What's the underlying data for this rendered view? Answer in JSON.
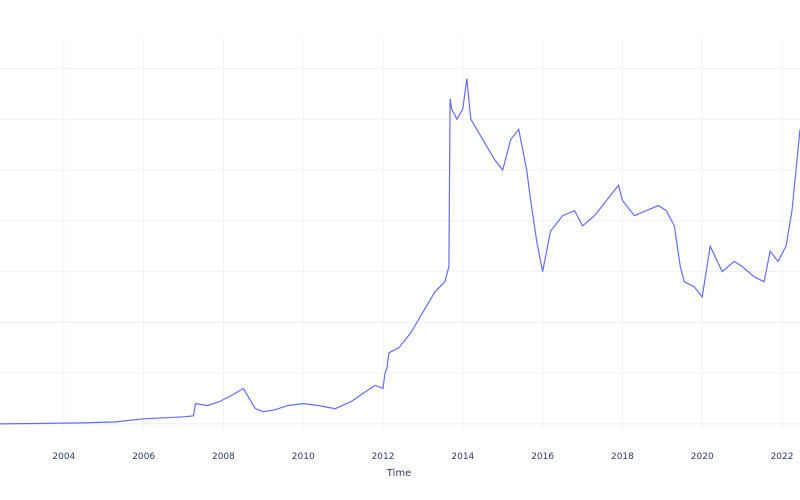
{
  "chart_data": {
    "type": "line",
    "title": "",
    "xlabel": "Time",
    "ylabel": "",
    "xlim": [
      2002.4,
      2022.45
    ],
    "ylim": [
      -0.06,
      3.8
    ],
    "x_ticks": [
      "2004",
      "2006",
      "2008",
      "2010",
      "2012",
      "2014",
      "2016",
      "2018",
      "2020",
      "2022"
    ],
    "grid": true,
    "legend": "none",
    "line_color": "#636efa",
    "series": [
      {
        "x": [
          2002.4,
          2003.5,
          2004.5,
          2005.3,
          2006.0,
          2006.5,
          2007.0,
          2007.25,
          2007.3,
          2007.6,
          2007.9,
          2008.2,
          2008.5,
          2008.8,
          2009.0,
          2009.3,
          2009.6,
          2010.0,
          2010.4,
          2010.8,
          2011.2,
          2011.5,
          2011.8,
          2012.0,
          2012.05,
          2012.1,
          2012.15,
          2012.4,
          2012.7,
          2013.0,
          2013.3,
          2013.55,
          2013.65,
          2013.68,
          2013.72,
          2013.85,
          2014.0,
          2014.1,
          2014.2,
          2014.5,
          2014.8,
          2015.0,
          2015.2,
          2015.4,
          2015.6,
          2015.7,
          2015.85,
          2016.0,
          2016.2,
          2016.5,
          2016.8,
          2017.0,
          2017.3,
          2017.6,
          2017.9,
          2018.0,
          2018.3,
          2018.6,
          2018.9,
          2019.1,
          2019.3,
          2019.45,
          2019.55,
          2019.8,
          2020.0,
          2020.2,
          2020.5,
          2020.8,
          2021.0,
          2021.3,
          2021.55,
          2021.7,
          2021.9,
          2022.1,
          2022.25,
          2022.35,
          2022.45
        ],
        "values": [
          0.0,
          0.005,
          0.01,
          0.02,
          0.05,
          0.06,
          0.07,
          0.08,
          0.2,
          0.18,
          0.22,
          0.28,
          0.35,
          0.15,
          0.12,
          0.14,
          0.18,
          0.2,
          0.18,
          0.15,
          0.22,
          0.3,
          0.38,
          0.35,
          0.5,
          0.55,
          0.7,
          0.75,
          0.9,
          1.1,
          1.3,
          1.4,
          1.55,
          3.2,
          3.1,
          3.0,
          3.1,
          3.4,
          3.0,
          2.8,
          2.6,
          2.5,
          2.8,
          2.9,
          2.5,
          2.2,
          1.8,
          1.5,
          1.9,
          2.05,
          2.1,
          1.95,
          2.05,
          2.2,
          2.35,
          2.2,
          2.05,
          2.1,
          2.15,
          2.1,
          1.95,
          1.55,
          1.4,
          1.35,
          1.25,
          1.75,
          1.5,
          1.6,
          1.55,
          1.45,
          1.4,
          1.7,
          1.6,
          1.75,
          2.1,
          2.5,
          2.9
        ]
      }
    ]
  }
}
